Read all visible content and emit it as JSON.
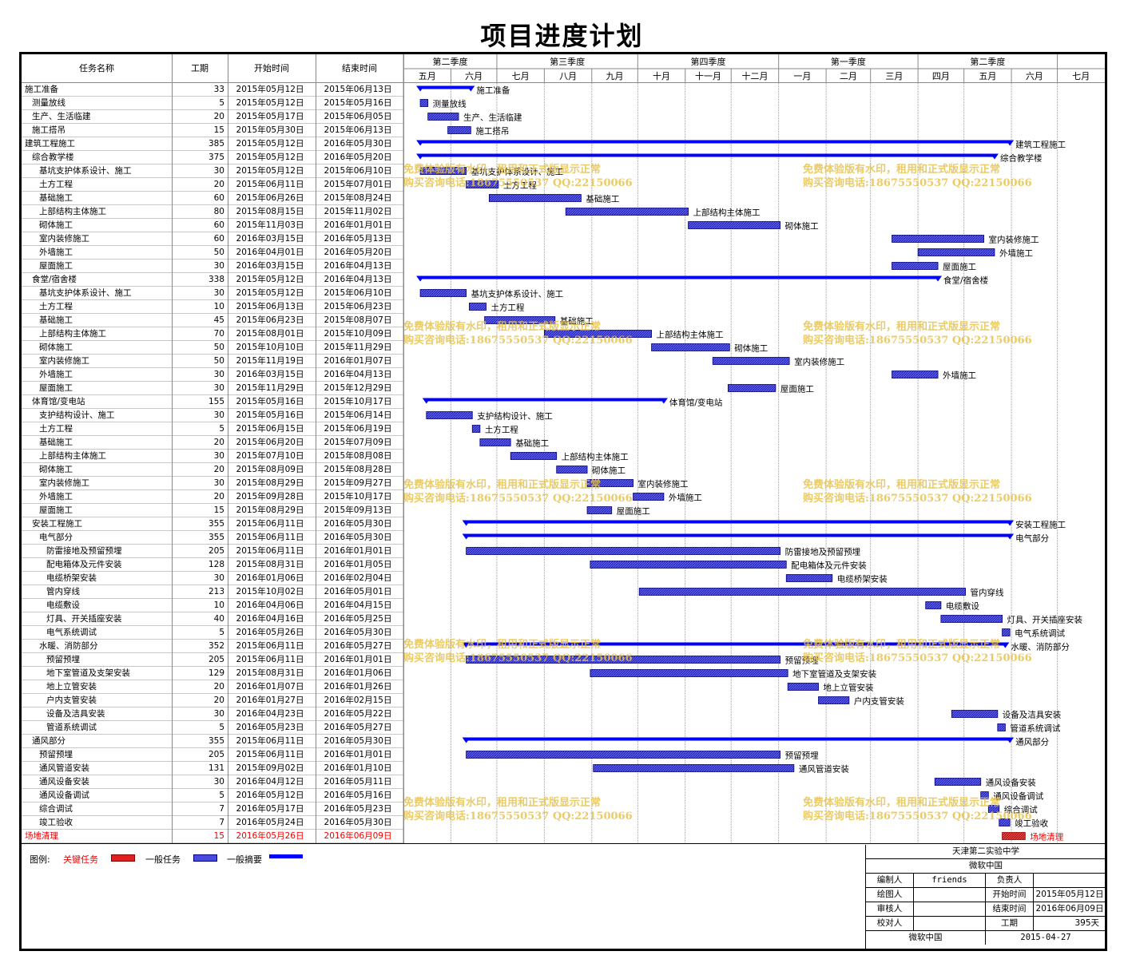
{
  "title": "项目进度计划",
  "headers": {
    "name": "任务名称",
    "dur": "工期",
    "start": "开始时间",
    "end": "结束时间"
  },
  "quarters": [
    {
      "label": "第二季度"
    },
    {
      "label": "第三季度"
    },
    {
      "label": "第四季度"
    },
    {
      "label": "第一季度"
    },
    {
      "label": "第二季度"
    }
  ],
  "months": [
    "五月",
    "六月",
    "七月",
    "八月",
    "九月",
    "十月",
    "十一月",
    "十二月",
    "一月",
    "二月",
    "三月",
    "四月",
    "五月",
    "六月",
    "七月"
  ],
  "legend": {
    "label": "图例:",
    "critical": "关键任务",
    "normal": "一般任务",
    "summary": "一般摘要"
  },
  "info": {
    "org": "天津第二实验中学",
    "company": "微软中国",
    "l_author": "编制人",
    "v_author": "friends",
    "l_owner": "负责人",
    "v_owner": "",
    "l_draw": "绘图人",
    "v_draw": "",
    "l_start": "开始时间",
    "v_start": "2015年05月12日",
    "l_review": "审核人",
    "v_review": "",
    "l_end": "结束时间",
    "v_end": "2016年06月09日",
    "l_check": "校对人",
    "v_check": "",
    "l_dur": "工期",
    "v_dur": "395天",
    "footer_company": "微软中国",
    "footer_date": "2015-04-27"
  },
  "watermark": {
    "line1": "免费体验版有水印，租用和正式版显示正常",
    "line2": "购买咨询电话:18675550537 QQ:22150066"
  },
  "colors": {
    "summary": "#0000ff",
    "task": "#2a2ad0",
    "critical": "#e02020",
    "watermark": "#e6c24a"
  },
  "chart_data": {
    "type": "gantt",
    "x_range": [
      "2015-05-01",
      "2016-07-31"
    ],
    "tasks": [
      {
        "name": "施工准备",
        "dur": "33",
        "start": "2015年05月12日",
        "end": "2015年06月13日",
        "s": "2015-05-12",
        "e": "2015-06-13",
        "kind": "summary",
        "level": 0
      },
      {
        "name": "测量放线",
        "dur": "5",
        "start": "2015年05月12日",
        "end": "2015年05月16日",
        "s": "2015-05-12",
        "e": "2015-05-16",
        "kind": "task",
        "level": 1
      },
      {
        "name": "生产、生活临建",
        "dur": "20",
        "start": "2015年05月17日",
        "end": "2015年06月05日",
        "s": "2015-05-17",
        "e": "2015-06-05",
        "kind": "task",
        "level": 1
      },
      {
        "name": "施工搭吊",
        "dur": "15",
        "start": "2015年05月30日",
        "end": "2015年06月13日",
        "s": "2015-05-30",
        "e": "2015-06-13",
        "kind": "task",
        "level": 1
      },
      {
        "name": "建筑工程施工",
        "dur": "385",
        "start": "2015年05月12日",
        "end": "2016年05月30日",
        "s": "2015-05-12",
        "e": "2016-05-30",
        "kind": "summary",
        "level": 0
      },
      {
        "name": "综合教学楼",
        "dur": "375",
        "start": "2015年05月12日",
        "end": "2016年05月20日",
        "s": "2015-05-12",
        "e": "2016-05-20",
        "kind": "summary",
        "level": 1
      },
      {
        "name": "基坑支护体系设计、施工",
        "dur": "30",
        "start": "2015年05月12日",
        "end": "2015年06月10日",
        "s": "2015-05-12",
        "e": "2015-06-10",
        "kind": "task",
        "level": 2
      },
      {
        "name": "土方工程",
        "dur": "20",
        "start": "2015年06月11日",
        "end": "2015年07月01日",
        "s": "2015-06-11",
        "e": "2015-07-01",
        "kind": "task",
        "level": 2
      },
      {
        "name": "基础施工",
        "dur": "60",
        "start": "2015年06月26日",
        "end": "2015年08月24日",
        "s": "2015-06-26",
        "e": "2015-08-24",
        "kind": "task",
        "level": 2
      },
      {
        "name": "上部结构主体施工",
        "dur": "80",
        "start": "2015年08月15日",
        "end": "2015年11月02日",
        "s": "2015-08-15",
        "e": "2015-11-02",
        "kind": "task",
        "level": 2
      },
      {
        "name": "砌体施工",
        "dur": "60",
        "start": "2015年11月03日",
        "end": "2016年01月01日",
        "s": "2015-11-03",
        "e": "2016-01-01",
        "kind": "task",
        "level": 2
      },
      {
        "name": "室内装修施工",
        "dur": "60",
        "start": "2016年03月15日",
        "end": "2016年05月13日",
        "s": "2016-03-15",
        "e": "2016-05-13",
        "kind": "task",
        "level": 2
      },
      {
        "name": "外墙施工",
        "dur": "50",
        "start": "2016年04月01日",
        "end": "2016年05月20日",
        "s": "2016-04-01",
        "e": "2016-05-20",
        "kind": "task",
        "level": 2
      },
      {
        "name": "屋面施工",
        "dur": "30",
        "start": "2016年03月15日",
        "end": "2016年04月13日",
        "s": "2016-03-15",
        "e": "2016-04-13",
        "kind": "task",
        "level": 2
      },
      {
        "name": "食堂/宿舍楼",
        "dur": "338",
        "start": "2015年05月12日",
        "end": "2016年04月13日",
        "s": "2015-05-12",
        "e": "2016-04-13",
        "kind": "summary",
        "level": 1
      },
      {
        "name": "基坑支护体系设计、施工",
        "dur": "30",
        "start": "2015年05月12日",
        "end": "2015年06月10日",
        "s": "2015-05-12",
        "e": "2015-06-10",
        "kind": "task",
        "level": 2
      },
      {
        "name": "土方工程",
        "dur": "10",
        "start": "2015年06月13日",
        "end": "2015年06月23日",
        "s": "2015-06-13",
        "e": "2015-06-23",
        "kind": "task",
        "level": 2
      },
      {
        "name": "基础施工",
        "dur": "45",
        "start": "2015年06月23日",
        "end": "2015年08月07日",
        "s": "2015-06-23",
        "e": "2015-08-07",
        "kind": "task",
        "level": 2
      },
      {
        "name": "上部结构主体施工",
        "dur": "70",
        "start": "2015年08月01日",
        "end": "2015年10月09日",
        "s": "2015-08-01",
        "e": "2015-10-09",
        "kind": "task",
        "level": 2
      },
      {
        "name": "砌体施工",
        "dur": "50",
        "start": "2015年10月10日",
        "end": "2015年11月29日",
        "s": "2015-10-10",
        "e": "2015-11-29",
        "kind": "task",
        "level": 2
      },
      {
        "name": "室内装修施工",
        "dur": "50",
        "start": "2015年11月19日",
        "end": "2016年01月07日",
        "s": "2015-11-19",
        "e": "2016-01-07",
        "kind": "task",
        "level": 2
      },
      {
        "name": "外墙施工",
        "dur": "30",
        "start": "2016年03月15日",
        "end": "2016年04月13日",
        "s": "2016-03-15",
        "e": "2016-04-13",
        "kind": "task",
        "level": 2
      },
      {
        "name": "屋面施工",
        "dur": "30",
        "start": "2015年11月29日",
        "end": "2015年12月29日",
        "s": "2015-11-29",
        "e": "2015-12-29",
        "kind": "task",
        "level": 2
      },
      {
        "name": "体育馆/变电站",
        "dur": "155",
        "start": "2015年05月16日",
        "end": "2015年10月17日",
        "s": "2015-05-16",
        "e": "2015-10-17",
        "kind": "summary",
        "level": 1
      },
      {
        "name": "支护结构设计、施工",
        "dur": "30",
        "start": "2015年05月16日",
        "end": "2015年06月14日",
        "s": "2015-05-16",
        "e": "2015-06-14",
        "kind": "task",
        "level": 2
      },
      {
        "name": "土方工程",
        "dur": "5",
        "start": "2015年06月15日",
        "end": "2015年06月19日",
        "s": "2015-06-15",
        "e": "2015-06-19",
        "kind": "task",
        "level": 2
      },
      {
        "name": "基础施工",
        "dur": "20",
        "start": "2015年06月20日",
        "end": "2015年07月09日",
        "s": "2015-06-20",
        "e": "2015-07-09",
        "kind": "task",
        "level": 2
      },
      {
        "name": "上部结构主体施工",
        "dur": "30",
        "start": "2015年07月10日",
        "end": "2015年08月08日",
        "s": "2015-07-10",
        "e": "2015-08-08",
        "kind": "task",
        "level": 2
      },
      {
        "name": "砌体施工",
        "dur": "20",
        "start": "2015年08月09日",
        "end": "2015年08月28日",
        "s": "2015-08-09",
        "e": "2015-08-28",
        "kind": "task",
        "level": 2
      },
      {
        "name": "室内装修施工",
        "dur": "30",
        "start": "2015年08月29日",
        "end": "2015年09月27日",
        "s": "2015-08-29",
        "e": "2015-09-27",
        "kind": "task",
        "level": 2
      },
      {
        "name": "外墙施工",
        "dur": "20",
        "start": "2015年09月28日",
        "end": "2015年10月17日",
        "s": "2015-09-28",
        "e": "2015-10-17",
        "kind": "task",
        "level": 2
      },
      {
        "name": "屋面施工",
        "dur": "15",
        "start": "2015年08月29日",
        "end": "2015年09月13日",
        "s": "2015-08-29",
        "e": "2015-09-13",
        "kind": "task",
        "level": 2
      },
      {
        "name": "安装工程施工",
        "dur": "355",
        "start": "2015年06月11日",
        "end": "2016年05月30日",
        "s": "2015-06-11",
        "e": "2016-05-30",
        "kind": "summary",
        "level": 1
      },
      {
        "name": "电气部分",
        "dur": "355",
        "start": "2015年06月11日",
        "end": "2016年05月30日",
        "s": "2015-06-11",
        "e": "2016-05-30",
        "kind": "summary",
        "level": 2
      },
      {
        "name": "防雷接地及预留预埋",
        "dur": "205",
        "start": "2015年06月11日",
        "end": "2016年01月01日",
        "s": "2015-06-11",
        "e": "2016-01-01",
        "kind": "task",
        "level": 3
      },
      {
        "name": "配电箱体及元件安装",
        "dur": "128",
        "start": "2015年08月31日",
        "end": "2016年01月05日",
        "s": "2015-08-31",
        "e": "2016-01-05",
        "kind": "task",
        "level": 3
      },
      {
        "name": "电缆桥架安装",
        "dur": "30",
        "start": "2016年01月06日",
        "end": "2016年02月04日",
        "s": "2016-01-06",
        "e": "2016-02-04",
        "kind": "task",
        "level": 3
      },
      {
        "name": "管内穿线",
        "dur": "213",
        "start": "2015年10月02日",
        "end": "2016年05月01日",
        "s": "2015-10-02",
        "e": "2016-05-01",
        "kind": "task",
        "level": 3
      },
      {
        "name": "电缆敷设",
        "dur": "10",
        "start": "2016年04月06日",
        "end": "2016年04月15日",
        "s": "2016-04-06",
        "e": "2016-04-15",
        "kind": "task",
        "level": 3
      },
      {
        "name": "灯具、开关插座安装",
        "dur": "40",
        "start": "2016年04月16日",
        "end": "2016年05月25日",
        "s": "2016-04-16",
        "e": "2016-05-25",
        "kind": "task",
        "level": 3
      },
      {
        "name": "电气系统调试",
        "dur": "5",
        "start": "2016年05月26日",
        "end": "2016年05月30日",
        "s": "2016-05-26",
        "e": "2016-05-30",
        "kind": "task",
        "level": 3
      },
      {
        "name": "水暖、消防部分",
        "dur": "352",
        "start": "2015年06月11日",
        "end": "2016年05月27日",
        "s": "2015-06-11",
        "e": "2016-05-27",
        "kind": "summary",
        "level": 2
      },
      {
        "name": "预留预埋",
        "dur": "205",
        "start": "2015年06月11日",
        "end": "2016年01月01日",
        "s": "2015-06-11",
        "e": "2016-01-01",
        "kind": "task",
        "level": 3
      },
      {
        "name": "地下室管道及支架安装",
        "dur": "129",
        "start": "2015年08月31日",
        "end": "2016年01月06日",
        "s": "2015-08-31",
        "e": "2016-01-06",
        "kind": "task",
        "level": 3
      },
      {
        "name": "地上立管安装",
        "dur": "20",
        "start": "2016年01月07日",
        "end": "2016年01月26日",
        "s": "2016-01-07",
        "e": "2016-01-26",
        "kind": "task",
        "level": 3
      },
      {
        "name": "户内支管安装",
        "dur": "20",
        "start": "2016年01月27日",
        "end": "2016年02月15日",
        "s": "2016-01-27",
        "e": "2016-02-15",
        "kind": "task",
        "level": 3
      },
      {
        "name": "设备及洁具安装",
        "dur": "30",
        "start": "2016年04月23日",
        "end": "2016年05月22日",
        "s": "2016-04-23",
        "e": "2016-05-22",
        "kind": "task",
        "level": 3
      },
      {
        "name": "管道系统调试",
        "dur": "5",
        "start": "2016年05月23日",
        "end": "2016年05月27日",
        "s": "2016-05-23",
        "e": "2016-05-27",
        "kind": "task",
        "level": 3
      },
      {
        "name": "通风部分",
        "dur": "355",
        "start": "2015年06月11日",
        "end": "2016年05月30日",
        "s": "2015-06-11",
        "e": "2016-05-30",
        "kind": "summary",
        "level": 1
      },
      {
        "name": "预留预埋",
        "dur": "205",
        "start": "2015年06月11日",
        "end": "2016年01月01日",
        "s": "2015-06-11",
        "e": "2016-01-01",
        "kind": "task",
        "level": 2
      },
      {
        "name": "通风管道安装",
        "dur": "131",
        "start": "2015年09月02日",
        "end": "2016年01月10日",
        "s": "2015-09-02",
        "e": "2016-01-10",
        "kind": "task",
        "level": 2
      },
      {
        "name": "通风设备安装",
        "dur": "30",
        "start": "2016年04月12日",
        "end": "2016年05月11日",
        "s": "2016-04-12",
        "e": "2016-05-11",
        "kind": "task",
        "level": 2
      },
      {
        "name": "通风设备调试",
        "dur": "5",
        "start": "2016年05月12日",
        "end": "2016年05月16日",
        "s": "2016-05-12",
        "e": "2016-05-16",
        "kind": "task",
        "level": 2
      },
      {
        "name": "综合调试",
        "dur": "7",
        "start": "2016年05月17日",
        "end": "2016年05月23日",
        "s": "2016-05-17",
        "e": "2016-05-23",
        "kind": "task",
        "level": 2
      },
      {
        "name": "竣工验收",
        "dur": "7",
        "start": "2016年05月24日",
        "end": "2016年05月30日",
        "s": "2016-05-24",
        "e": "2016-05-30",
        "kind": "task",
        "level": 2
      },
      {
        "name": "场地清理",
        "dur": "15",
        "start": "2016年05月26日",
        "end": "2016年06月09日",
        "s": "2016-05-26",
        "e": "2016-06-09",
        "kind": "critical",
        "level": 0
      }
    ]
  }
}
